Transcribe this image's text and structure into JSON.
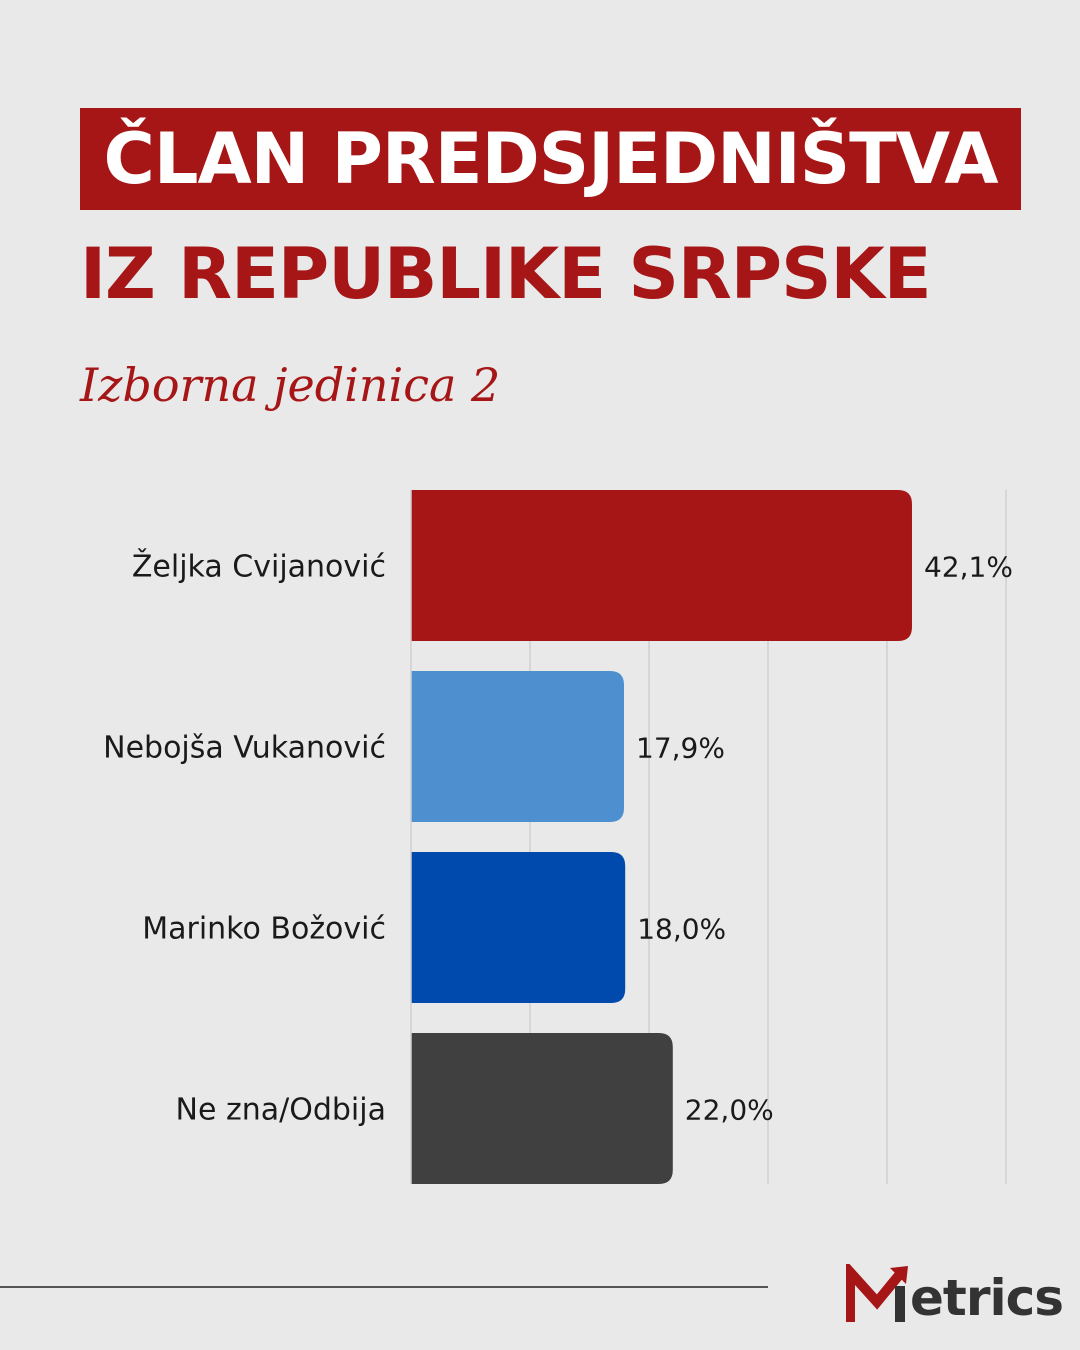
{
  "header": {
    "title_line1": "ČLAN PREDSJEDNIŠTVA",
    "title_line2": "IZ REPUBLIKE SRPSKE",
    "subtitle": "Izborna jedinica 2"
  },
  "chart_data": {
    "type": "bar",
    "orientation": "horizontal",
    "categories": [
      "Željka Cvijanović",
      "Nebojša Vukanović",
      "Marinko Božović",
      "Ne zna/Odbija"
    ],
    "values": [
      42.1,
      17.9,
      18.0,
      22.0
    ],
    "value_labels": [
      "42,1%",
      "17,9%",
      "18,0%",
      "22,0%"
    ],
    "colors": [
      "#a61616",
      "#4e8fcf",
      "#004aad",
      "#404040"
    ],
    "xlim": [
      0,
      50
    ],
    "grid": true,
    "title": "",
    "xlabel": "",
    "ylabel": ""
  },
  "brand": {
    "logo_text": "etrics",
    "logo_icon": "metrics-m-arrow-icon",
    "accent": "#a61616",
    "text_color": "#333333"
  }
}
